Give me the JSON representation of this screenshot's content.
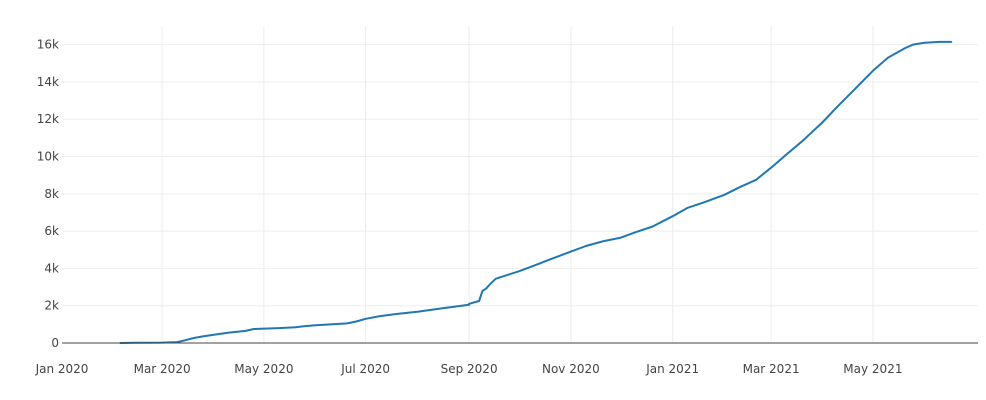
{
  "chart_data": {
    "type": "line",
    "title": "",
    "xlabel": "",
    "ylabel": "",
    "grid": true,
    "legend": "none",
    "x_range": [
      "2020-01-01",
      "2021-07-03"
    ],
    "y_range": [
      0,
      17000
    ],
    "y_ticks": [
      {
        "value": 0,
        "label": "0"
      },
      {
        "value": 2000,
        "label": "2k"
      },
      {
        "value": 4000,
        "label": "4k"
      },
      {
        "value": 6000,
        "label": "6k"
      },
      {
        "value": 8000,
        "label": "8k"
      },
      {
        "value": 10000,
        "label": "10k"
      },
      {
        "value": 12000,
        "label": "12k"
      },
      {
        "value": 14000,
        "label": "14k"
      },
      {
        "value": 16000,
        "label": "16k"
      }
    ],
    "x_ticks": [
      {
        "value": "2020-01-01",
        "label": "Jan 2020"
      },
      {
        "value": "2020-03-01",
        "label": "Mar 2020"
      },
      {
        "value": "2020-05-01",
        "label": "May 2020"
      },
      {
        "value": "2020-07-01",
        "label": "Jul 2020"
      },
      {
        "value": "2020-09-01",
        "label": "Sep 2020"
      },
      {
        "value": "2020-11-01",
        "label": "Nov 2020"
      },
      {
        "value": "2021-01-01",
        "label": "Jan 2021"
      },
      {
        "value": "2021-03-01",
        "label": "Mar 2021"
      },
      {
        "value": "2021-05-01",
        "label": "May 2021"
      }
    ],
    "colors": {
      "line": "#1f77b4",
      "grid": "#eeeeee",
      "zero_line": "#444444",
      "tick_text": "#444444"
    },
    "series": [
      {
        "segments": [
          {
            "x": [
              "2020-02-05",
              "2020-02-15",
              "2020-03-01",
              "2020-03-10",
              "2020-03-15",
              "2020-03-20",
              "2020-03-25",
              "2020-04-01",
              "2020-04-10",
              "2020-04-20",
              "2020-04-25",
              "2020-05-01",
              "2020-05-10",
              "2020-05-20",
              "2020-05-25",
              "2020-06-01",
              "2020-06-10",
              "2020-06-20",
              "2020-06-25",
              "2020-07-01",
              "2020-07-10",
              "2020-07-20",
              "2020-08-01",
              "2020-08-15",
              "2020-09-01"
            ],
            "y": [
              0,
              10,
              20,
              50,
              150,
              270,
              350,
              440,
              560,
              650,
              750,
              770,
              800,
              840,
              900,
              950,
              1000,
              1050,
              1150,
              1300,
              1450,
              1560,
              1680,
              1850,
              2050
            ]
          },
          {
            "x": [
              "2020-09-01",
              "2020-09-07",
              "2020-09-09",
              "2020-09-11",
              "2020-09-13",
              "2020-09-17",
              "2020-09-24",
              "2020-10-01",
              "2020-10-10",
              "2020-10-20",
              "2020-11-01",
              "2020-11-10",
              "2020-11-20",
              "2020-12-01",
              "2020-12-10",
              "2020-12-20",
              "2021-01-01",
              "2021-01-10",
              "2021-01-20",
              "2021-02-01",
              "2021-02-10",
              "2021-02-20",
              "2021-03-01",
              "2021-03-10",
              "2021-03-20",
              "2021-04-01",
              "2021-04-10",
              "2021-04-20",
              "2021-05-01",
              "2021-05-10",
              "2021-05-20",
              "2021-05-25",
              "2021-06-01",
              "2021-06-10",
              "2021-06-17"
            ],
            "y": [
              2100,
              2250,
              2800,
              2900,
              3100,
              3450,
              3650,
              3850,
              4150,
              4500,
              4900,
              5200,
              5450,
              5650,
              5950,
              6250,
              6800,
              7250,
              7550,
              7950,
              8350,
              8750,
              9400,
              10100,
              10850,
              11850,
              12700,
              13600,
              14600,
              15300,
              15800,
              16000,
              16100,
              16150,
              16150
            ]
          }
        ]
      }
    ]
  }
}
